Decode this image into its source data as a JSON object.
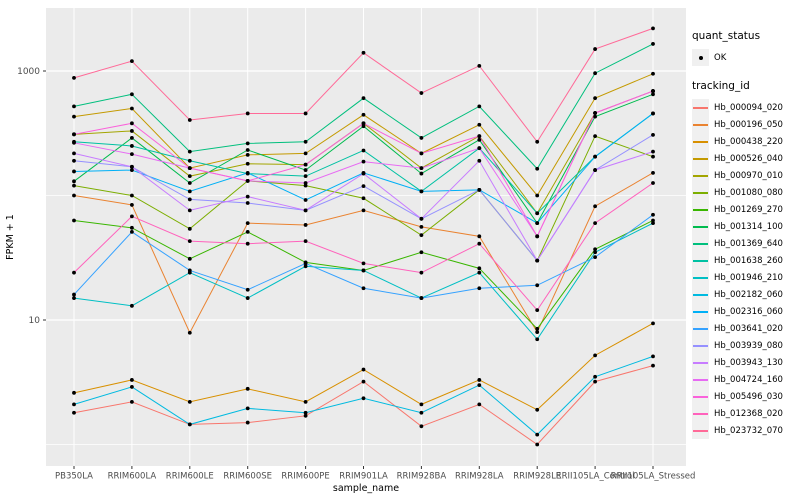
{
  "figure": {
    "panel_bg": "#EBEBEB",
    "grid_color": "#FFFFFF",
    "tick_color": "#333333",
    "tick_label_color": "#4D4D4D",
    "axis_title_color": "#000000",
    "legend_key_bg": "#F0F0F0",
    "point_color": "#000000"
  },
  "chart_data": {
    "type": "line",
    "title": "",
    "xlabel": "sample_name",
    "ylabel": "FPKM + 1",
    "y_scale": "log10",
    "y_ticks": [
      10,
      1000
    ],
    "y_minor_gridlines": [
      1,
      100
    ],
    "ylim": [
      0.65,
      3200
    ],
    "grid": true,
    "legend_position": "right",
    "categories": [
      "PB350LA",
      "RRIM600LA",
      "RRIM600LE",
      "RRIM600SE",
      "RRIM600PE",
      "RRIM901LA",
      "RRIM928BA",
      "RRIM928LA",
      "RRIM928LE",
      "RRII105LA_Control",
      "RRII105LA_Stressed"
    ],
    "series": [
      {
        "name": "Hb_000094_020",
        "color": "#F8766D",
        "values": [
          1.8,
          2.2,
          1.45,
          1.5,
          1.7,
          3.2,
          1.4,
          2.1,
          1.0,
          3.2,
          4.3
        ]
      },
      {
        "name": "Hb_000196_050",
        "color": "#EA8331",
        "values": [
          100,
          84,
          7.9,
          60,
          58,
          76,
          56,
          47,
          8.0,
          82,
          152
        ]
      },
      {
        "name": "Hb_000438_220",
        "color": "#D89000",
        "values": [
          2.6,
          3.3,
          2.2,
          2.8,
          2.2,
          4.0,
          2.1,
          3.3,
          1.9,
          5.2,
          9.4
        ]
      },
      {
        "name": "Hb_000526_040",
        "color": "#C49A00",
        "values": [
          430,
          500,
          166,
          212,
          218,
          445,
          218,
          370,
          100,
          605,
          950
        ]
      },
      {
        "name": "Hb_000970_010",
        "color": "#A3A500",
        "values": [
          310,
          330,
          143,
          180,
          177,
          380,
          166,
          300,
          72,
          460,
          690
        ]
      },
      {
        "name": "Hb_001080_080",
        "color": "#7CAE00",
        "values": [
          120,
          100,
          54,
          131,
          120,
          95,
          48,
          111,
          30,
          300,
          205
        ]
      },
      {
        "name": "Hb_001269_270",
        "color": "#39B600",
        "values": [
          63,
          55,
          31,
          51,
          29,
          25,
          35,
          26,
          8.5,
          37,
          63
        ]
      },
      {
        "name": "Hb_001314_100",
        "color": "#00BB4E",
        "values": [
          130,
          290,
          126,
          232,
          160,
          360,
          150,
          280,
          60,
          430,
          650
        ]
      },
      {
        "name": "Hb_001369_640",
        "color": "#00BF7D",
        "values": [
          520,
          650,
          225,
          262,
          270,
          605,
          290,
          520,
          164,
          960,
          1650
        ]
      },
      {
        "name": "Hb_001638_260",
        "color": "#00C1A3",
        "values": [
          270,
          250,
          190,
          150,
          143,
          230,
          108,
          240,
          72,
          205,
          456
        ]
      },
      {
        "name": "Hb_001946_210",
        "color": "#00BFC4",
        "values": [
          15,
          13,
          24,
          15,
          27,
          25,
          15,
          24,
          7.0,
          35,
          60
        ]
      },
      {
        "name": "Hb_002182_060",
        "color": "#00BAE0",
        "values": [
          2.1,
          2.9,
          1.45,
          1.95,
          1.8,
          2.35,
          1.8,
          3.0,
          1.2,
          3.5,
          5.1
        ]
      },
      {
        "name": "Hb_002316_060",
        "color": "#00B0F6",
        "values": [
          156,
          160,
          108,
          152,
          92,
          152,
          108,
          111,
          60,
          205,
          456
        ]
      },
      {
        "name": "Hb_003641_020",
        "color": "#35A2FF",
        "values": [
          16,
          51,
          25,
          17.5,
          28.5,
          18,
          15,
          18,
          19,
          32,
          70
        ]
      },
      {
        "name": "Hb_003939_080",
        "color": "#9590FF",
        "values": [
          190,
          170,
          93,
          87,
          76,
          119,
          65,
          111,
          30,
          160,
          307
        ]
      },
      {
        "name": "Hb_003943_130",
        "color": "#C77CFF",
        "values": [
          218,
          170,
          76,
          98,
          76,
          150,
          65,
          190,
          30,
          160,
          225
        ]
      },
      {
        "name": "Hb_004724_160",
        "color": "#E76BF3",
        "values": [
          265,
          215,
          166,
          131,
          126,
          187,
          166,
          240,
          47,
          460,
          690
        ]
      },
      {
        "name": "Hb_005496_030",
        "color": "#FA62DB",
        "values": [
          310,
          380,
          166,
          131,
          177,
          380,
          218,
          300,
          47,
          460,
          690
        ]
      },
      {
        "name": "Hb_012368_020",
        "color": "#FF62BC",
        "values": [
          24,
          68,
          43,
          41,
          43,
          28.5,
          24,
          41,
          12,
          60,
          126
        ]
      },
      {
        "name": "Hb_023732_070",
        "color": "#FF6A98",
        "values": [
          880,
          1200,
          404,
          456,
          456,
          1400,
          665,
          1100,
          270,
          1500,
          2200
        ]
      }
    ],
    "legend": {
      "quant_status_title": "quant_status",
      "quant_status_items": [
        {
          "label": "OK",
          "shape": "point"
        }
      ],
      "tracking_id_title": "tracking_id"
    }
  }
}
